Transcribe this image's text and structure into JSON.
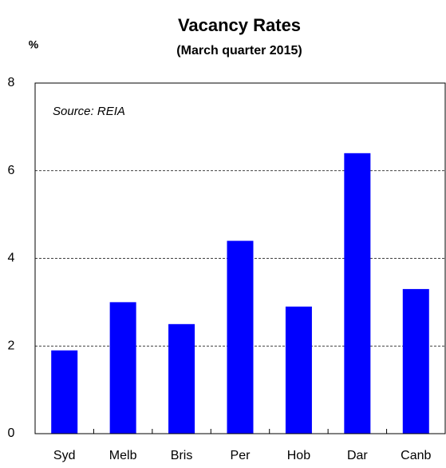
{
  "chart_data": {
    "type": "bar",
    "title": "Vacancy Rates",
    "subtitle": "(March quarter 2015)",
    "y_label": "%",
    "annotation": "Source: REIA",
    "categories": [
      "Syd",
      "Melb",
      "Bris",
      "Per",
      "Hob",
      "Dar",
      "Canb"
    ],
    "values": [
      1.9,
      3.0,
      2.5,
      4.4,
      2.9,
      6.4,
      3.3
    ],
    "color": "#0000ff",
    "ylim": [
      0,
      8
    ],
    "yticks": [
      0,
      2,
      4,
      6,
      8
    ],
    "grid": true
  }
}
